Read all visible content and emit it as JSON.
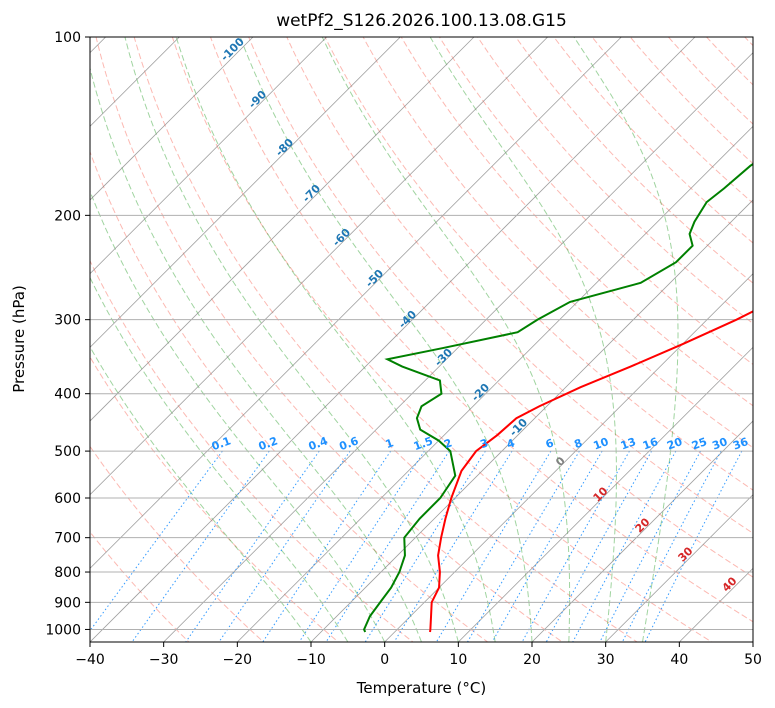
{
  "chart_data": {
    "type": "skew-t",
    "title": "wetPf2_S126.2026.100.13.08.G15",
    "xlabel": "Temperature (°C)",
    "ylabel": "Pressure (hPa)",
    "xlim": [
      -40,
      50
    ],
    "ylim": [
      1050,
      100
    ],
    "x_ticks": [
      -40,
      -30,
      -20,
      -10,
      0,
      10,
      20,
      30,
      40,
      50
    ],
    "x_tick_labels": [
      "−40",
      "−30",
      "−20",
      "−10",
      "0",
      "10",
      "20",
      "30",
      "40",
      "50"
    ],
    "y_ticks": [
      100,
      200,
      300,
      400,
      500,
      600,
      700,
      800,
      900,
      1000
    ],
    "y_tick_labels": [
      "100",
      "200",
      "300",
      "400",
      "500",
      "600",
      "700",
      "800",
      "900",
      "1000"
    ],
    "colors": {
      "temperature": "#ff0000",
      "dewpoint": "#008000",
      "dry_adiabat": "#fa8072",
      "moist_adiabat": "#2ca02c",
      "mixing_ratio": "#1e90ff",
      "isotherm": "#808080",
      "isotherm_label_cold": "#1f77b4",
      "isotherm_label_warm": "#d62728",
      "isotherm_label_zero": "#808080"
    },
    "series": [
      {
        "name": "Temperature",
        "points": [
          [
            100,
            33.5
          ],
          [
            110,
            31
          ],
          [
            125,
            27
          ],
          [
            140,
            24
          ],
          [
            150,
            23
          ],
          [
            170,
            21.5
          ],
          [
            200,
            17
          ],
          [
            230,
            13
          ],
          [
            260,
            9
          ],
          [
            300,
            4
          ],
          [
            330,
            0
          ],
          [
            360,
            -4
          ],
          [
            390,
            -8
          ],
          [
            420,
            -11
          ],
          [
            440,
            -12.5
          ],
          [
            470,
            -12.8
          ],
          [
            500,
            -13.5
          ],
          [
            540,
            -12.8
          ],
          [
            600,
            -10.5
          ],
          [
            650,
            -8.5
          ],
          [
            700,
            -6.5
          ],
          [
            750,
            -4.5
          ],
          [
            800,
            -2
          ],
          [
            850,
            0
          ],
          [
            900,
            1
          ],
          [
            950,
            2.8
          ],
          [
            1000,
            4.5
          ],
          [
            1010,
            4.8
          ]
        ]
      },
      {
        "name": "Dewpoint",
        "points": [
          [
            100,
            -5
          ],
          [
            110,
            -7
          ],
          [
            130,
            -9
          ],
          [
            145,
            -11
          ],
          [
            155,
            -14
          ],
          [
            165,
            -15
          ],
          [
            180,
            -15.5
          ],
          [
            190,
            -16
          ],
          [
            205,
            -15
          ],
          [
            215,
            -14
          ],
          [
            225,
            -12
          ],
          [
            240,
            -12
          ],
          [
            260,
            -14
          ],
          [
            280,
            -21
          ],
          [
            300,
            -23
          ],
          [
            315,
            -24
          ],
          [
            335,
            -32
          ],
          [
            350,
            -38
          ],
          [
            360,
            -35
          ],
          [
            380,
            -28
          ],
          [
            400,
            -26
          ],
          [
            420,
            -27
          ],
          [
            440,
            -26
          ],
          [
            460,
            -24
          ],
          [
            480,
            -20
          ],
          [
            500,
            -17
          ],
          [
            550,
            -13
          ],
          [
            600,
            -12
          ],
          [
            650,
            -12
          ],
          [
            700,
            -11.5
          ],
          [
            750,
            -9
          ],
          [
            800,
            -7.5
          ],
          [
            850,
            -6.5
          ],
          [
            900,
            -6
          ],
          [
            950,
            -5.5
          ],
          [
            1000,
            -4.5
          ],
          [
            1010,
            -4
          ]
        ]
      }
    ],
    "isotherm_labels": [
      {
        "value": -100,
        "text": "-100"
      },
      {
        "value": -90,
        "text": "-90"
      },
      {
        "value": -80,
        "text": "-80"
      },
      {
        "value": -70,
        "text": "-70"
      },
      {
        "value": -60,
        "text": "-60"
      },
      {
        "value": -50,
        "text": "-50"
      },
      {
        "value": -40,
        "text": "-40"
      },
      {
        "value": -30,
        "text": "-30"
      },
      {
        "value": -20,
        "text": "-20"
      },
      {
        "value": -10,
        "text": "-10"
      },
      {
        "value": 0,
        "text": "0"
      },
      {
        "value": 10,
        "text": "10"
      },
      {
        "value": 20,
        "text": "20"
      },
      {
        "value": 30,
        "text": "30"
      },
      {
        "value": 40,
        "text": "40"
      }
    ],
    "mixing_ratio_labels": [
      "0.1",
      "0.2",
      "0.4",
      "0.6",
      "1",
      "1.5",
      "2",
      "3",
      "4",
      "6",
      "8",
      "10",
      "13",
      "16",
      "20",
      "25",
      "30",
      "36"
    ],
    "mixing_ratio_values": [
      0.1,
      0.2,
      0.4,
      0.6,
      1,
      1.5,
      2,
      3,
      4,
      6,
      8,
      10,
      13,
      16,
      20,
      25,
      30,
      36
    ],
    "mixing_ratio_top_hpa": 500,
    "dry_adiabats_theta_c": [
      -30,
      -20,
      -10,
      0,
      10,
      20,
      30,
      40,
      50,
      60,
      70,
      80,
      90,
      100,
      110,
      120,
      130,
      140,
      150,
      160,
      170,
      180,
      190,
      200,
      210
    ],
    "moist_adiabats_start_c": [
      -10,
      -5,
      0,
      5,
      10,
      15,
      20,
      25,
      30,
      35
    ],
    "grid": true
  }
}
